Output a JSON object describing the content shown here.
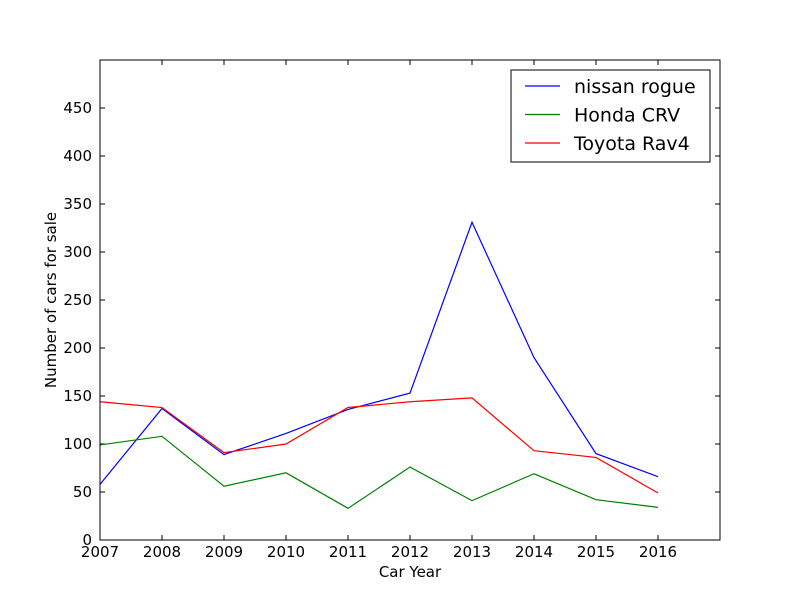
{
  "chart_data": {
    "type": "line",
    "title": "",
    "xlabel": "Car Year",
    "ylabel": "Number of cars for sale",
    "x": [
      2007,
      2008,
      2009,
      2010,
      2011,
      2012,
      2013,
      2014,
      2015,
      2016
    ],
    "xlim": [
      2007,
      2017
    ],
    "ylim": [
      0,
      500
    ],
    "xticks": [
      "2007",
      "2008",
      "2009",
      "2010",
      "2011",
      "2012",
      "2013",
      "2014",
      "2015",
      "2016"
    ],
    "yticks": [
      "0",
      "50",
      "100",
      "150",
      "200",
      "250",
      "300",
      "350",
      "400",
      "450"
    ],
    "grid": false,
    "legend_position": "top-right",
    "series": [
      {
        "name": "nissan rogue",
        "color": "#0000ff",
        "values": [
          58,
          137,
          89,
          111,
          136,
          153,
          331,
          190,
          90,
          66
        ]
      },
      {
        "name": "Honda CRV",
        "color": "#008000",
        "values": [
          99,
          108,
          56,
          70,
          33,
          76,
          41,
          69,
          42,
          34
        ]
      },
      {
        "name": "Toyota Rav4",
        "color": "#ff0000",
        "values": [
          144,
          138,
          91,
          100,
          138,
          144,
          148,
          93,
          86,
          49
        ]
      }
    ]
  }
}
